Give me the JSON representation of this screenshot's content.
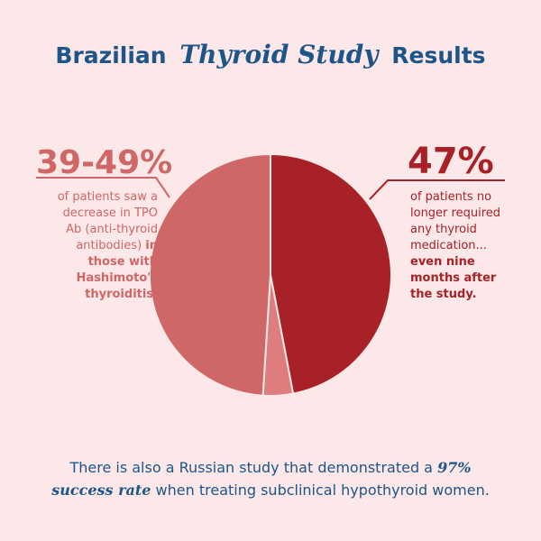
{
  "title": {
    "prefix": "Brazilian",
    "emphasis": "Thyroid Study",
    "suffix": "Results"
  },
  "left_callout": {
    "stat": "39-49%",
    "text": "of patients saw a decrease in TPO Ab (anti-thyroid antibodies)",
    "bold": "in those with Hashimoto's thyroiditis."
  },
  "right_callout": {
    "stat": "47%",
    "text": "of patients no longer required any thyroid medication...",
    "bold": "even nine months after the study."
  },
  "footer": {
    "line1_text": "There is also a Russian study that demonstrated a",
    "line1_emphasis": "97%",
    "line2_emphasis": "success rate",
    "line2_text": "when treating subclinical hypothyroid women."
  },
  "colors": {
    "background": "#fce8e8",
    "title_blue": "#1e5589",
    "dark_red": "#a82126",
    "medium_red": "#cf6766",
    "light_red": "#dd7d7e",
    "slice_border": "#fce8e8"
  },
  "chart_data": {
    "type": "pie",
    "start_angle_deg": 0,
    "direction": "clockwise",
    "slices": [
      {
        "value": 47,
        "color": "#a82126"
      },
      {
        "value": 4,
        "color": "#dd7d7e"
      },
      {
        "value": 49,
        "color": "#cf6766"
      }
    ]
  }
}
